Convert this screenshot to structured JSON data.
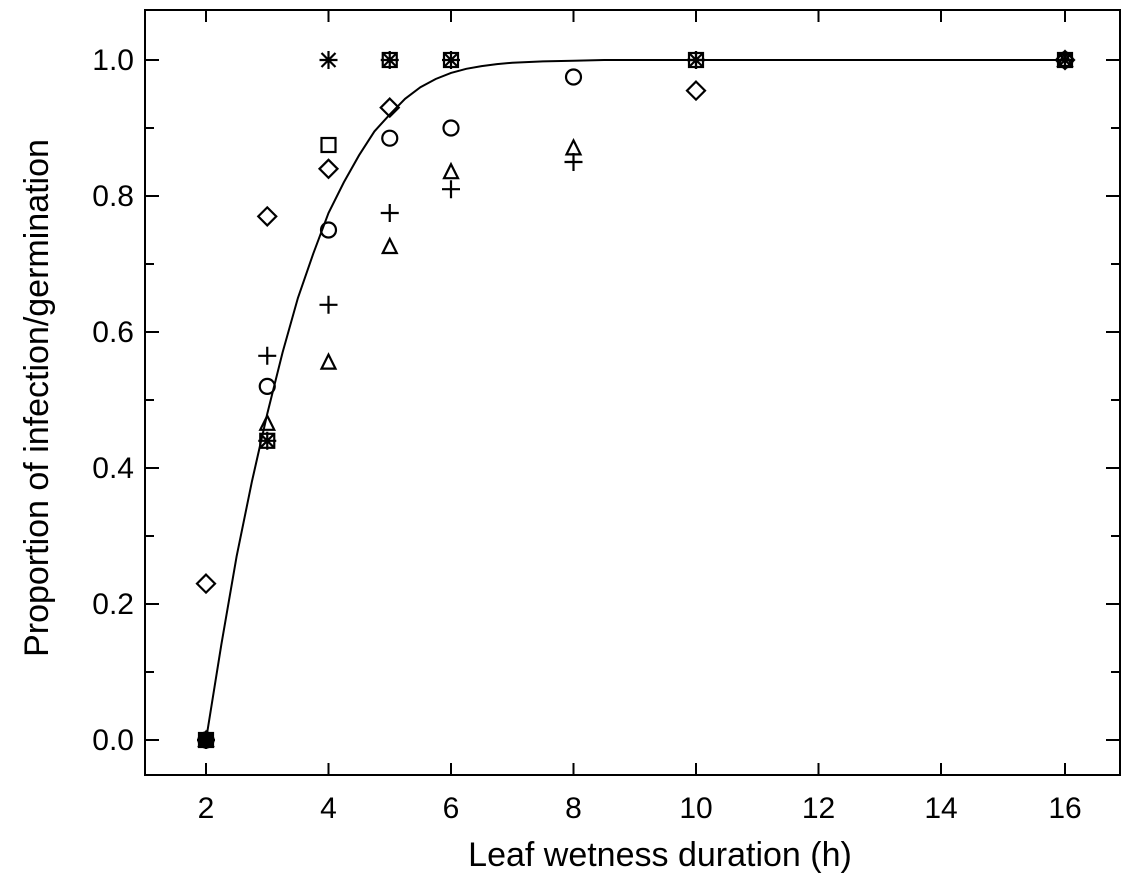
{
  "chart_data": {
    "type": "scatter",
    "title": "",
    "xlabel": "Leaf wetness duration (h)",
    "ylabel": "Proportion of infection/germination",
    "x_tick_labels": [
      "2",
      "4",
      "6",
      "8",
      "10",
      "12",
      "14",
      "16"
    ],
    "y_tick_labels": [
      "0.0",
      "0.2",
      "0.4",
      "0.6",
      "0.8",
      "1.0"
    ],
    "ylim": [
      0,
      1
    ],
    "x_scale_note": "categorical-like axis: 2,3,4,5,6,8,10,16 shown at positions; 16 placed at tick label 16",
    "grid": false,
    "legend": "none",
    "series": [
      {
        "marker": "diamond",
        "points": [
          [
            2,
            0.23
          ],
          [
            3,
            0.77
          ],
          [
            4,
            0.84
          ],
          [
            5,
            0.93
          ],
          [
            10,
            0.955
          ],
          [
            16,
            1.0
          ]
        ]
      },
      {
        "marker": "circle",
        "points": [
          [
            2,
            0.0
          ],
          [
            3,
            0.52
          ],
          [
            4,
            0.75
          ],
          [
            5,
            0.885
          ],
          [
            6,
            0.9
          ],
          [
            8,
            0.975
          ],
          [
            16,
            1.0
          ]
        ]
      },
      {
        "marker": "square",
        "points": [
          [
            2,
            0.0
          ],
          [
            3,
            0.44
          ],
          [
            4,
            0.875
          ],
          [
            5,
            1.0
          ],
          [
            6,
            1.0
          ],
          [
            10,
            1.0
          ],
          [
            16,
            1.0
          ]
        ]
      },
      {
        "marker": "plus",
        "points": [
          [
            2,
            0.0
          ],
          [
            3,
            0.565
          ],
          [
            4,
            0.64
          ],
          [
            5,
            0.775
          ],
          [
            6,
            0.81
          ],
          [
            8,
            0.85
          ],
          [
            10,
            1.0
          ],
          [
            16,
            1.0
          ]
        ]
      },
      {
        "marker": "triangle",
        "points": [
          [
            2,
            0.0
          ],
          [
            3,
            0.465
          ],
          [
            4,
            0.555
          ],
          [
            5,
            0.725
          ],
          [
            6,
            0.835
          ],
          [
            8,
            0.87
          ],
          [
            16,
            1.0
          ]
        ]
      },
      {
        "marker": "star",
        "points": [
          [
            2,
            0.0
          ],
          [
            3,
            0.44
          ],
          [
            4,
            1.0
          ],
          [
            5,
            1.0
          ],
          [
            6,
            1.0
          ],
          [
            10,
            1.0
          ],
          [
            16,
            1.0
          ]
        ]
      }
    ],
    "fitted_curve": {
      "x": [
        2.0,
        2.25,
        2.5,
        2.75,
        3.0,
        3.25,
        3.5,
        3.75,
        4.0,
        4.25,
        4.5,
        4.75,
        5.0,
        5.25,
        5.5,
        5.75,
        6.0,
        6.25,
        6.5,
        6.75,
        7.0,
        7.5,
        8.0,
        8.5,
        9.0,
        10.0,
        12.0,
        14.0,
        16.0
      ],
      "y": [
        0.0,
        0.14,
        0.27,
        0.38,
        0.48,
        0.57,
        0.65,
        0.715,
        0.775,
        0.82,
        0.86,
        0.895,
        0.92,
        0.943,
        0.96,
        0.972,
        0.981,
        0.987,
        0.991,
        0.994,
        0.996,
        0.998,
        0.999,
        1.0,
        1.0,
        1.0,
        1.0,
        1.0,
        1.0
      ]
    }
  }
}
